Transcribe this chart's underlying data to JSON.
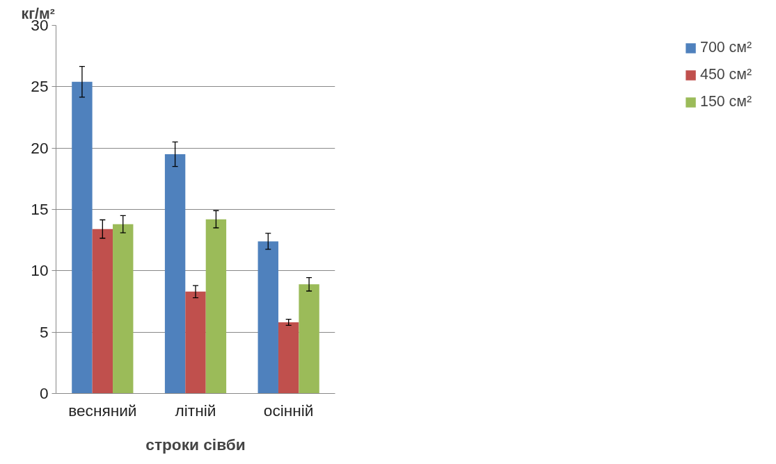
{
  "chart_data": {
    "type": "bar",
    "ylabel": "кг/м²",
    "xlabel": "строки сівби",
    "categories": [
      "весняний",
      "літній",
      "осінній"
    ],
    "series": [
      {
        "name": "700 см²",
        "color": "#4f81bd",
        "values": [
          25.4,
          19.5,
          12.4
        ],
        "errors": [
          1.25,
          1.0,
          0.65
        ]
      },
      {
        "name": "450 см²",
        "color": "#c0504d",
        "values": [
          13.4,
          8.3,
          5.8
        ],
        "errors": [
          0.75,
          0.5,
          0.25
        ]
      },
      {
        "name": "150 см²",
        "color": "#9bbb59",
        "values": [
          13.8,
          14.2,
          8.9
        ],
        "errors": [
          0.7,
          0.7,
          0.55
        ]
      }
    ],
    "ylim": [
      0,
      30
    ],
    "yticks": [
      0,
      5,
      10,
      15,
      20,
      25,
      30
    ],
    "grid": "y",
    "legend": "right"
  }
}
